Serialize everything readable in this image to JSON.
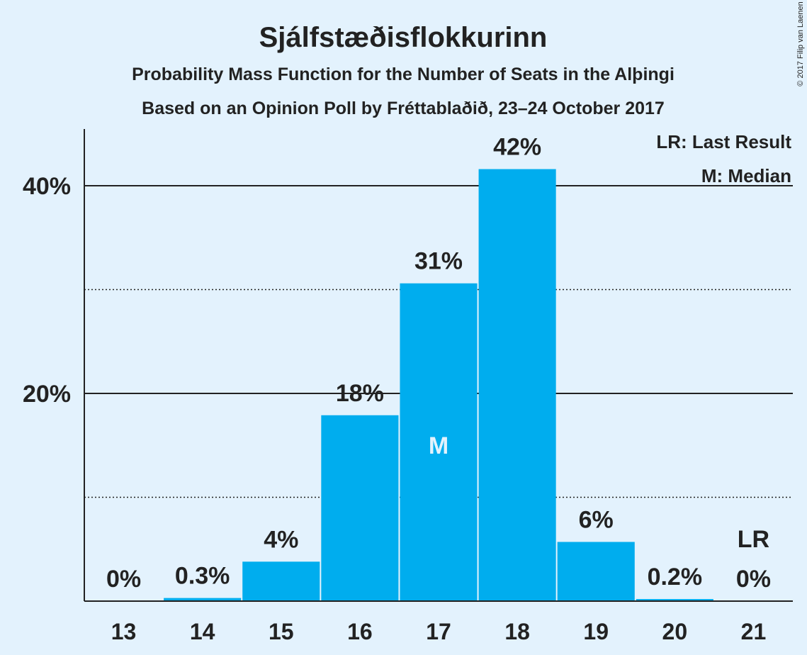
{
  "copyright": "© 2017 Filip van Laenen",
  "legend": {
    "lr": "LR: Last Result",
    "m": "M: Median"
  },
  "colors": {
    "bar": "#00adee",
    "background": "#e3f2fd",
    "text": "#222222"
  },
  "chart_data": {
    "type": "bar",
    "title": "Sjálfstæðisflokkurinn",
    "subtitle": "Probability Mass Function for the Number of Seats in the Alþingi",
    "subtitle2": "Based on an Opinion Poll by Fréttablaðið, 23–24 October 2017",
    "categories": [
      "13",
      "14",
      "15",
      "16",
      "17",
      "18",
      "19",
      "20",
      "21"
    ],
    "values": [
      0,
      0.3,
      3.8,
      17.9,
      30.6,
      41.6,
      5.7,
      0.2,
      0
    ],
    "data_labels": [
      "0%",
      "0.3%",
      "4%",
      "18%",
      "31%",
      "42%",
      "6%",
      "0.2%",
      "0%"
    ],
    "ylim": [
      0,
      45
    ],
    "y_ticks": [
      {
        "value": 20,
        "label": "20%"
      },
      {
        "value": 40,
        "label": "40%"
      }
    ],
    "minor_gridlines": [
      10,
      30
    ],
    "median": {
      "category": "17",
      "label": "M"
    },
    "last_result": {
      "category": "21",
      "label": "LR"
    },
    "xlabel": "",
    "ylabel": ""
  }
}
